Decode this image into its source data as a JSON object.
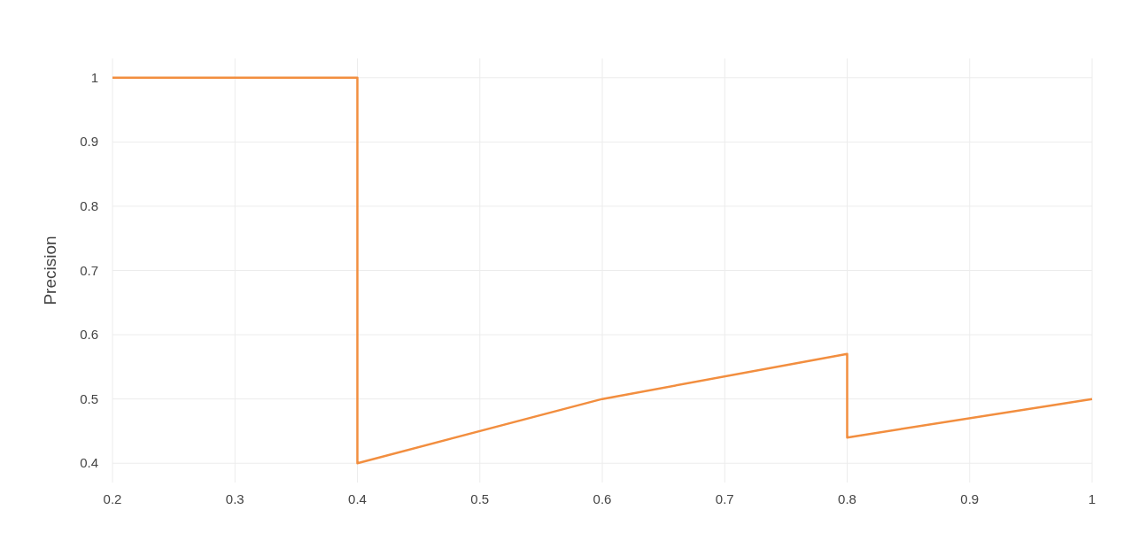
{
  "chart_data": {
    "type": "line",
    "ylabel": "Precision",
    "x": [
      0.2,
      0.4,
      0.4,
      0.6,
      0.8,
      0.8,
      1
    ],
    "series": [
      {
        "color": "#f28e3f",
        "values": [
          1,
          1,
          0.4,
          0.5,
          0.57,
          0.44,
          0.5
        ]
      }
    ],
    "xlim": [
      0.2,
      1
    ],
    "xticks": [
      0.2,
      0.3,
      0.4,
      0.5,
      0.6,
      0.7,
      0.8,
      0.9,
      1
    ],
    "ylim": [
      0.37,
      1.03
    ],
    "yticks": [
      0.4,
      0.5,
      0.6,
      0.7,
      0.8,
      0.9,
      1
    ],
    "grid": true,
    "marker": "none",
    "line_style": "solid"
  }
}
